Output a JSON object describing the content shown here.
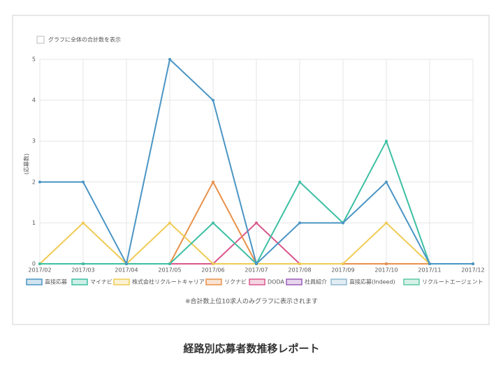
{
  "chart_data": {
    "type": "line",
    "title": "経路別応募者数推移レポート",
    "ylabel": "(応募数)",
    "checkbox_label": "グラフに全体の合計数を表示",
    "note": "※合計数上位10求人のみグラフに表示されます",
    "categories": [
      "2017/02",
      "2017/03",
      "2017/04",
      "2017/05",
      "2017/06",
      "2017/07",
      "2017/08",
      "2017/09",
      "2017/10",
      "2017/11",
      "2017/12"
    ],
    "ylim": [
      0,
      5
    ],
    "yticks": [
      0,
      1,
      2,
      3,
      4,
      5
    ],
    "grid": true,
    "legend": "bottom",
    "series": [
      {
        "name": "直接応募",
        "color": "#4a95c4",
        "values": [
          2,
          2,
          0,
          5,
          4,
          0,
          1,
          1,
          2,
          0,
          0
        ]
      },
      {
        "name": "マイナビ",
        "color": "#3dbfa3",
        "values": [
          0,
          0,
          0,
          0,
          1,
          0,
          2,
          1,
          3,
          0,
          0
        ]
      },
      {
        "name": "株式会社リクルートキャリア",
        "color": "#f0cb55",
        "values": [
          0,
          1,
          0,
          1,
          0,
          0,
          0,
          0,
          1,
          0,
          0
        ]
      },
      {
        "name": "リクナビ",
        "color": "#e8914a",
        "values": [
          0,
          0,
          0,
          0,
          2,
          0,
          0,
          0,
          0,
          0,
          0
        ]
      },
      {
        "name": "DODA",
        "color": "#d9578c",
        "values": [
          0,
          0,
          0,
          0,
          0,
          1,
          0,
          0,
          0,
          0,
          0
        ]
      },
      {
        "name": "社員紹介",
        "color": "#9c5bb8",
        "values": [
          0,
          0,
          0,
          0,
          0,
          0,
          0,
          0,
          0,
          0,
          0
        ]
      },
      {
        "name": "直接応募(Indeed)",
        "color": "#8db9cf",
        "values": [
          0,
          0,
          0,
          0,
          0,
          0,
          0,
          0,
          0,
          0,
          0
        ]
      },
      {
        "name": "リクルートエージェント",
        "color": "#5ec9a2",
        "values": [
          0,
          0,
          0,
          0,
          0,
          0,
          0,
          0,
          0,
          0,
          0
        ]
      }
    ]
  }
}
